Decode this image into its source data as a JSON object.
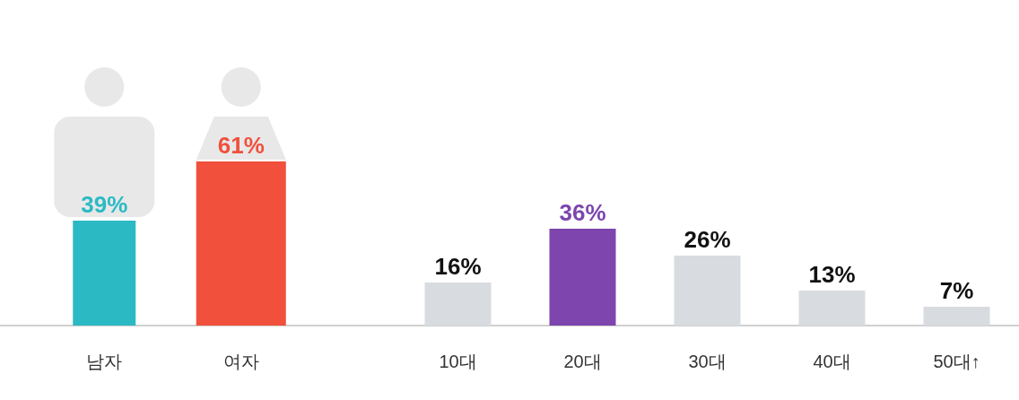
{
  "chart_data": [
    {
      "type": "bar",
      "categories": [
        "남자",
        "여자"
      ],
      "values": [
        39,
        61
      ],
      "colors": [
        "#2bbac4",
        "#f0503c"
      ],
      "value_labels": [
        "39%",
        "61%"
      ]
    },
    {
      "type": "bar",
      "categories": [
        "10대",
        "20대",
        "30대",
        "40대",
        "50대↑"
      ],
      "values": [
        16,
        36,
        26,
        13,
        7
      ],
      "colors": [
        "#d8dce0",
        "#7d45ad",
        "#d8dce0",
        "#d8dce0",
        "#d8dce0"
      ],
      "value_labels": [
        "16%",
        "36%",
        "26%",
        "13%",
        "7%"
      ]
    }
  ]
}
